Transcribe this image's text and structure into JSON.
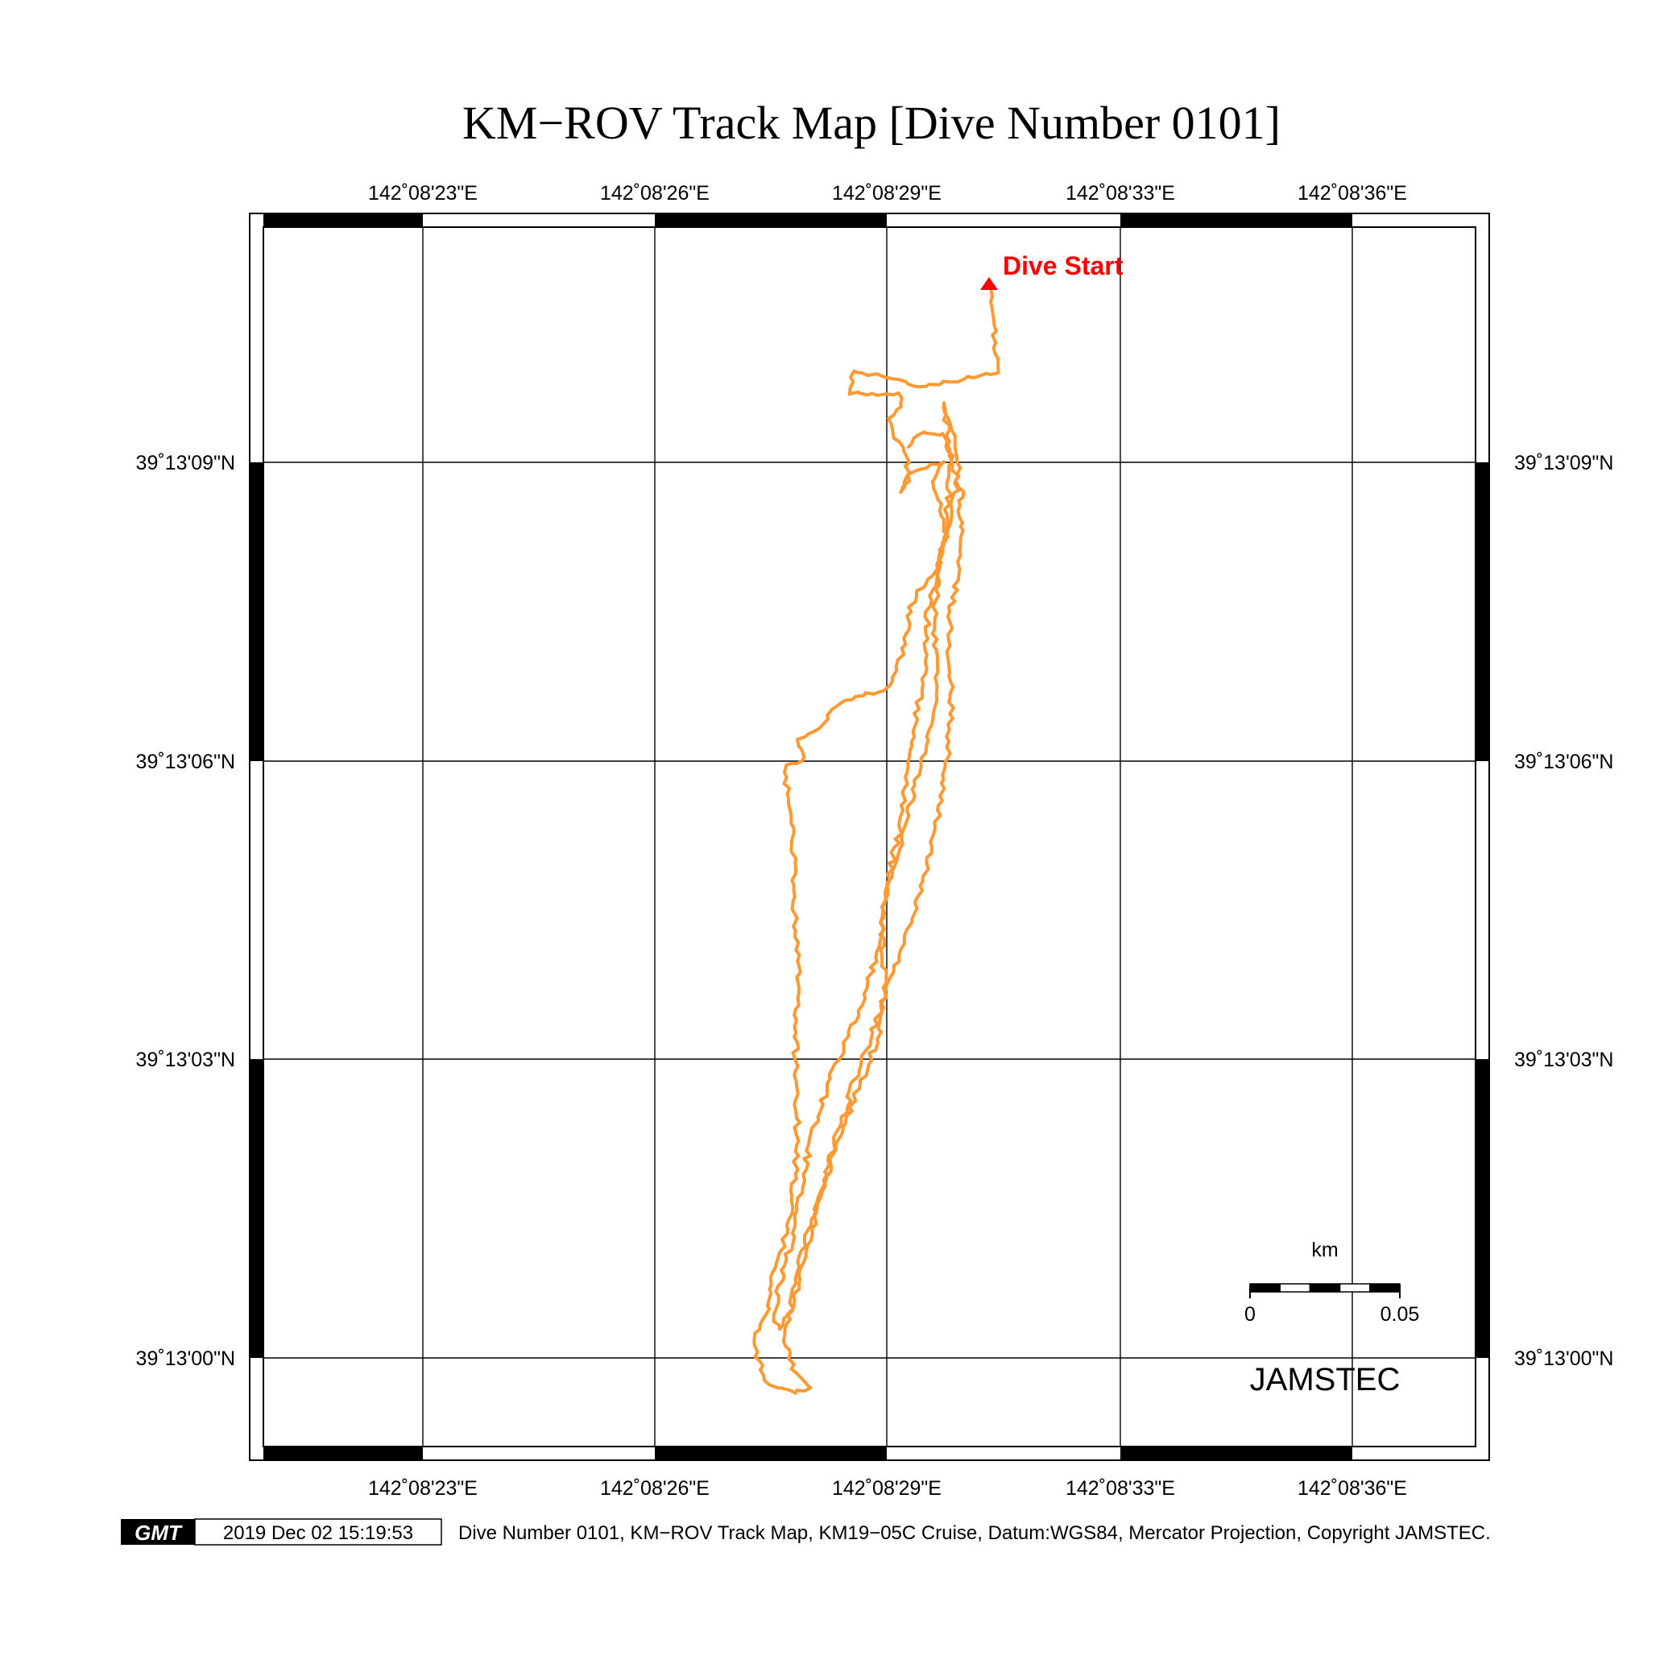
{
  "title": "KM−ROV Track Map [Dive Number 0101]",
  "axes": {
    "lon_ticks": [
      "142˚08'23\"E",
      "142˚08'26\"E",
      "142˚08'29\"E",
      "142˚08'33\"E",
      "142˚08'36\"E"
    ],
    "lat_ticks": [
      "39˚13'09\"N",
      "39˚13'06\"N",
      "39˚13'03\"N",
      "39˚13'00\"N"
    ]
  },
  "map": {
    "start_label": "Dive Start",
    "start_color": "#ff0000",
    "track_color": "#ff9933",
    "frame_color": "#000000"
  },
  "scale_bar": {
    "unit": "km",
    "min_label": "0",
    "max_label": "0.05"
  },
  "watermark": "JAMSTEC",
  "footer": {
    "logo": "GMT",
    "timestamp": "2019 Dec 02 15:19:53",
    "caption": "Dive Number 0101, KM−ROV Track Map, KM19−05C Cruise, Datum:WGS84, Mercator Projection, Copyright JAMSTEC."
  }
}
